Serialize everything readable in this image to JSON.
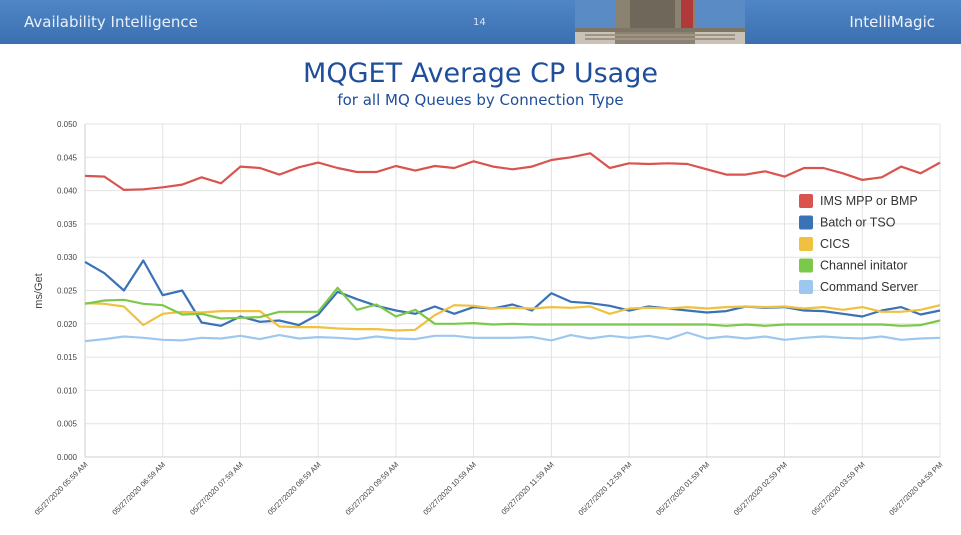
{
  "header": {
    "left_title": "Availability Intelligence",
    "page_number": "14",
    "right_title": "IntelliMagic"
  },
  "colors": {
    "banner": "#3d72b4",
    "title": "#1f4e9a",
    "gridline": "#e3e3e3"
  },
  "chart_data": {
    "type": "line",
    "title": "MQGET Average CP Usage",
    "subtitle": "for all MQ Queues by Connection Type",
    "ylabel": "ms/Get",
    "xlabel": "",
    "ylim": [
      0,
      0.05
    ],
    "yticks": [
      "0.000",
      "0.005",
      "0.010",
      "0.015",
      "0.020",
      "0.025",
      "0.030",
      "0.035",
      "0.040",
      "0.045",
      "0.050"
    ],
    "xticks": [
      "05/27/2020 05:59 AM",
      "05/27/2020 06:59 AM",
      "05/27/2020 07:59 AM",
      "05/27/2020 08:59 AM",
      "05/27/2020 09:59 AM",
      "05/27/2020 10:59 AM",
      "05/27/2020 11:59 AM",
      "05/27/2020 12:59 PM",
      "05/27/2020 01:59 PM",
      "05/27/2020 02:59 PM",
      "05/27/2020 03:59 PM",
      "05/27/2020 04:59 PM"
    ],
    "grid": true,
    "legend_position": "right",
    "series": [
      {
        "name": "IMS MPP or BMP",
        "color": "#d9534f",
        "values": [
          0.0422,
          0.0421,
          0.0401,
          0.0402,
          0.0405,
          0.0409,
          0.042,
          0.0411,
          0.0436,
          0.0434,
          0.0424,
          0.0435,
          0.0442,
          0.0434,
          0.0428,
          0.0428,
          0.0437,
          0.043,
          0.0437,
          0.0434,
          0.0444,
          0.0436,
          0.0432,
          0.0436,
          0.0446,
          0.045,
          0.0456,
          0.0434,
          0.0441,
          0.044,
          0.0441,
          0.044,
          0.0432,
          0.0424,
          0.0424,
          0.0429,
          0.0421,
          0.0434,
          0.0434,
          0.0426,
          0.0416,
          0.042,
          0.0436,
          0.0426,
          0.0442
        ]
      },
      {
        "name": "Batch or TSO",
        "color": "#3a72b8",
        "values": [
          0.0293,
          0.0276,
          0.025,
          0.0295,
          0.0243,
          0.025,
          0.0202,
          0.0197,
          0.0211,
          0.0203,
          0.0205,
          0.0198,
          0.0214,
          0.0248,
          0.0237,
          0.0227,
          0.022,
          0.0215,
          0.0226,
          0.0215,
          0.0225,
          0.0223,
          0.0229,
          0.022,
          0.0246,
          0.0233,
          0.0231,
          0.0227,
          0.022,
          0.0226,
          0.0223,
          0.022,
          0.0217,
          0.0219,
          0.0226,
          0.0224,
          0.0225,
          0.022,
          0.0219,
          0.0215,
          0.0211,
          0.022,
          0.0225,
          0.0214,
          0.022
        ]
      },
      {
        "name": "CICS",
        "color": "#f0c040",
        "values": [
          0.0231,
          0.023,
          0.0226,
          0.0198,
          0.0215,
          0.0218,
          0.0217,
          0.0219,
          0.0219,
          0.0219,
          0.0196,
          0.0195,
          0.0195,
          0.0193,
          0.0192,
          0.0192,
          0.019,
          0.0191,
          0.0213,
          0.0228,
          0.0227,
          0.0223,
          0.0224,
          0.0223,
          0.0225,
          0.0224,
          0.0226,
          0.0215,
          0.0223,
          0.0224,
          0.0223,
          0.0225,
          0.0223,
          0.0225,
          0.0226,
          0.0225,
          0.0226,
          0.0223,
          0.0225,
          0.0221,
          0.0225,
          0.0218,
          0.0218,
          0.0221,
          0.0228
        ]
      },
      {
        "name": "Channel initator",
        "color": "#7cc84a",
        "values": [
          0.023,
          0.0235,
          0.0236,
          0.023,
          0.0228,
          0.0214,
          0.0215,
          0.0208,
          0.0209,
          0.021,
          0.0218,
          0.0218,
          0.0218,
          0.0254,
          0.0221,
          0.0229,
          0.0211,
          0.0221,
          0.02,
          0.02,
          0.0201,
          0.0199,
          0.02,
          0.0199,
          0.0199,
          0.0199,
          0.0199,
          0.0199,
          0.0199,
          0.0199,
          0.0199,
          0.0199,
          0.0199,
          0.0197,
          0.0199,
          0.0197,
          0.0199,
          0.0199,
          0.0199,
          0.0199,
          0.0199,
          0.0199,
          0.0197,
          0.0198,
          0.0205
        ]
      },
      {
        "name": "Command Server",
        "color": "#9cc8f0",
        "values": [
          0.0174,
          0.0177,
          0.0181,
          0.0179,
          0.0176,
          0.0175,
          0.0179,
          0.0178,
          0.0182,
          0.0177,
          0.0183,
          0.0178,
          0.018,
          0.0179,
          0.0177,
          0.0181,
          0.0178,
          0.0177,
          0.0182,
          0.0182,
          0.0179,
          0.0179,
          0.0179,
          0.018,
          0.0175,
          0.0183,
          0.0178,
          0.0182,
          0.0179,
          0.0182,
          0.0177,
          0.0187,
          0.0178,
          0.0181,
          0.0178,
          0.0181,
          0.0176,
          0.0179,
          0.0181,
          0.0179,
          0.0178,
          0.0181,
          0.0176,
          0.0178,
          0.0179
        ]
      }
    ]
  }
}
